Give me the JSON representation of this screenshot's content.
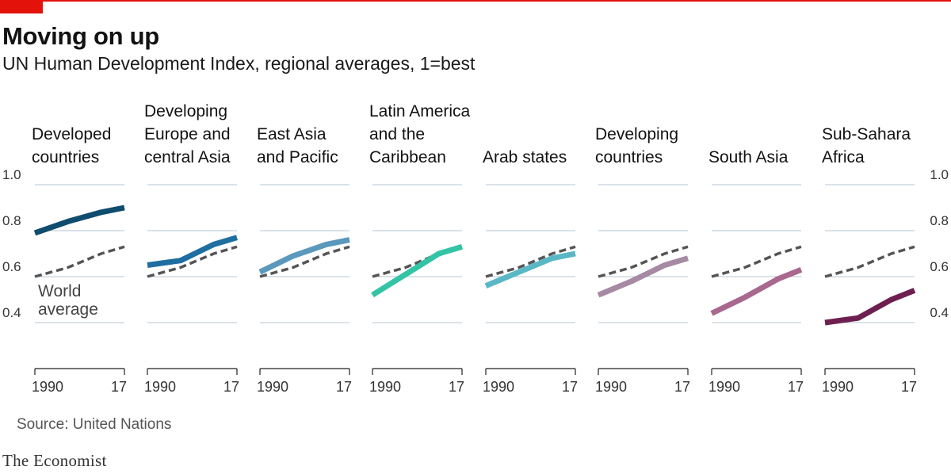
{
  "header": {
    "title": "Moving on up",
    "subtitle": "UN Human Development Index, regional averages, 1=best"
  },
  "footer": {
    "source": "Source: United Nations",
    "brand": "The Economist"
  },
  "colors": {
    "accent": "#e3120b",
    "gridline": "#b7c6d3",
    "world_line": "#555555"
  },
  "chart_data": {
    "type": "line",
    "title": "Moving on up",
    "subtitle": "UN Human Development Index, regional averages, 1=best",
    "x": [
      1990,
      2000,
      2010,
      2017
    ],
    "x_tick_labels": [
      "1990",
      "17"
    ],
    "ylim": [
      0.4,
      1.0
    ],
    "y_ticks": [
      0.4,
      0.6,
      0.8,
      1.0
    ],
    "y_tick_labels": [
      "0.4",
      "0.6",
      "0.8",
      "1.0"
    ],
    "grid": true,
    "reference_series": {
      "name": "World average",
      "label_lines": [
        "World",
        "average"
      ],
      "values": [
        0.6,
        0.64,
        0.7,
        0.73
      ]
    },
    "panels": [
      {
        "label_lines": [
          "Developed",
          "countries"
        ],
        "color": "#0f4c6e",
        "values": [
          0.79,
          0.84,
          0.88,
          0.9
        ]
      },
      {
        "label_lines": [
          "Developing",
          "Europe and",
          "central Asia"
        ],
        "color": "#1f6ea1",
        "values": [
          0.65,
          0.67,
          0.74,
          0.77
        ]
      },
      {
        "label_lines": [
          "East Asia",
          "and Pacific"
        ],
        "color": "#5a98bc",
        "values": [
          0.62,
          0.69,
          0.74,
          0.76
        ]
      },
      {
        "label_lines": [
          "Latin America",
          "and the",
          "Caribbean"
        ],
        "color": "#33c3a5",
        "values": [
          0.52,
          0.61,
          0.7,
          0.73
        ]
      },
      {
        "label_lines": [
          "Arab states"
        ],
        "color": "#5ab8c6",
        "values": [
          0.56,
          0.62,
          0.68,
          0.7
        ]
      },
      {
        "label_lines": [
          "Developing",
          "countries"
        ],
        "color": "#a68aa3",
        "values": [
          0.52,
          0.58,
          0.65,
          0.68
        ]
      },
      {
        "label_lines": [
          "South Asia"
        ],
        "color": "#a9688e",
        "values": [
          0.44,
          0.51,
          0.59,
          0.63
        ]
      },
      {
        "label_lines": [
          "Sub-Sahara",
          " Africa"
        ],
        "color": "#6d1f4f",
        "values": [
          0.4,
          0.42,
          0.5,
          0.54
        ]
      }
    ]
  }
}
